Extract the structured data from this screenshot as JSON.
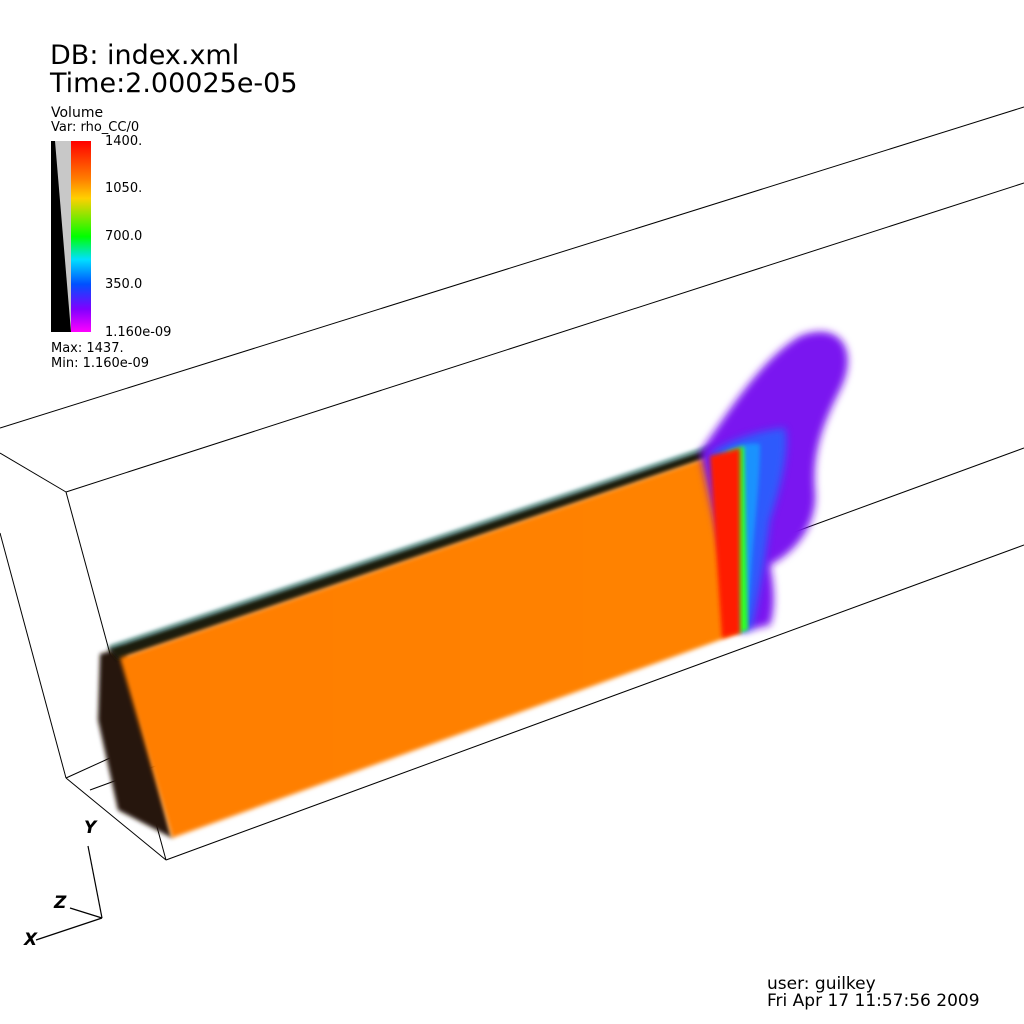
{
  "header": {
    "db": "DB: index.xml",
    "time": "Time:2.00025e-05"
  },
  "legend": {
    "type": "Volume",
    "var": "Var: rho_CC/0",
    "ticks": [
      "1400.",
      "1050.",
      "700.0",
      "350.0",
      "1.160e-09"
    ],
    "max": "Max:  1437.",
    "min": "Min:  1.160e-09"
  },
  "triad": {
    "x": "X",
    "y": "Y",
    "z": "Z"
  },
  "footer": {
    "user": "user: guilkey",
    "date": "Fri Apr 17 11:57:56 2009"
  },
  "colors": {
    "slab_orange": "#ff8000",
    "slab_dark": "#2a1508",
    "ejecta_purple": "#7a16f0",
    "ejecta_blue": "#1a6cff",
    "front_red": "#ff1a00",
    "front_green": "#30ff20"
  }
}
